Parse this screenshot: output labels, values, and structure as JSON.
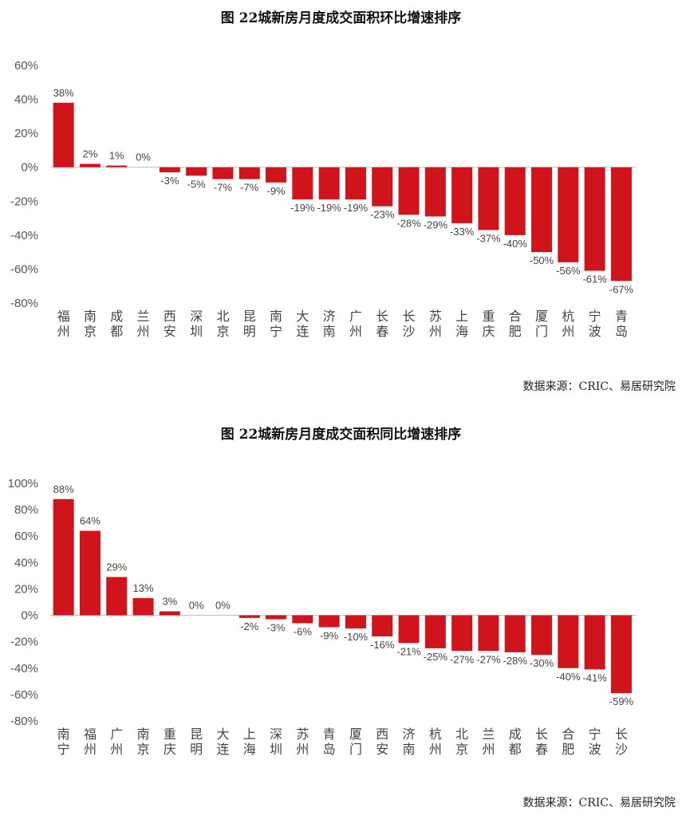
{
  "chart_data": [
    {
      "type": "bar",
      "title": "图  22城新房月度成交面积环比增速排序",
      "source": "数据来源：CRIC、易居研究院",
      "categories": [
        "福州",
        "南京",
        "成都",
        "兰州",
        "西安",
        "深圳",
        "北京",
        "昆明",
        "南宁",
        "大连",
        "济南",
        "广州",
        "长春",
        "长沙",
        "苏州",
        "上海",
        "重庆",
        "合肥",
        "厦门",
        "杭州",
        "宁波",
        "青岛"
      ],
      "values": [
        38,
        2,
        1,
        0,
        -3,
        -5,
        -7,
        -7,
        -9,
        -19,
        -19,
        -19,
        -23,
        -28,
        -29,
        -33,
        -37,
        -40,
        -50,
        -56,
        -61,
        -67
      ],
      "data_labels": [
        "38%",
        "2%",
        "1%",
        "0%",
        "-3%",
        "-5%",
        "-7%",
        "-7%",
        "-9%",
        "-19%",
        "-19%",
        "-19%",
        "-23%",
        "-28%",
        "-29%",
        "-33%",
        "-37%",
        "-40%",
        "-50%",
        "-56%",
        "-61%",
        "-67%"
      ],
      "yticks": [
        60,
        40,
        20,
        0,
        -20,
        -40,
        -60,
        -80
      ],
      "ytick_labels": [
        "60%",
        "40%",
        "20%",
        "0%",
        "-20%",
        "-40%",
        "-60%",
        "-80%"
      ],
      "ylim": [
        -80,
        60
      ],
      "color": "#d0141c",
      "grid": false
    },
    {
      "type": "bar",
      "title": "图   22城新房月度成交面积同比增速排序",
      "source": "数据来源：CRIC、易居研究院",
      "categories": [
        "南宁",
        "福州",
        "广州",
        "南京",
        "重庆",
        "昆明",
        "大连",
        "上海",
        "深圳",
        "苏州",
        "青岛",
        "厦门",
        "西安",
        "济南",
        "杭州",
        "北京",
        "兰州",
        "成都",
        "长春",
        "合肥",
        "宁波",
        "长沙"
      ],
      "values": [
        88,
        64,
        29,
        13,
        3,
        0,
        0,
        -2,
        -3,
        -6,
        -9,
        -10,
        -16,
        -21,
        -25,
        -27,
        -27,
        -28,
        -30,
        -40,
        -41,
        -59
      ],
      "data_labels": [
        "88%",
        "64%",
        "29%",
        "13%",
        "3%",
        "0%",
        "0%",
        "-2%",
        "-3%",
        "-6%",
        "-9%",
        "-10%",
        "-16%",
        "-21%",
        "-25%",
        "-27%",
        "-27%",
        "-28%",
        "-30%",
        "-40%",
        "-41%",
        "-59%"
      ],
      "yticks": [
        100,
        80,
        60,
        40,
        20,
        0,
        -20,
        -40,
        -60,
        -80
      ],
      "ytick_labels": [
        "100%",
        "80%",
        "60%",
        "40%",
        "20%",
        "0%",
        "-20%",
        "-40%",
        "-60%",
        "-80%"
      ],
      "ylim": [
        -80,
        100
      ],
      "color": "#d0141c",
      "grid": false
    }
  ]
}
